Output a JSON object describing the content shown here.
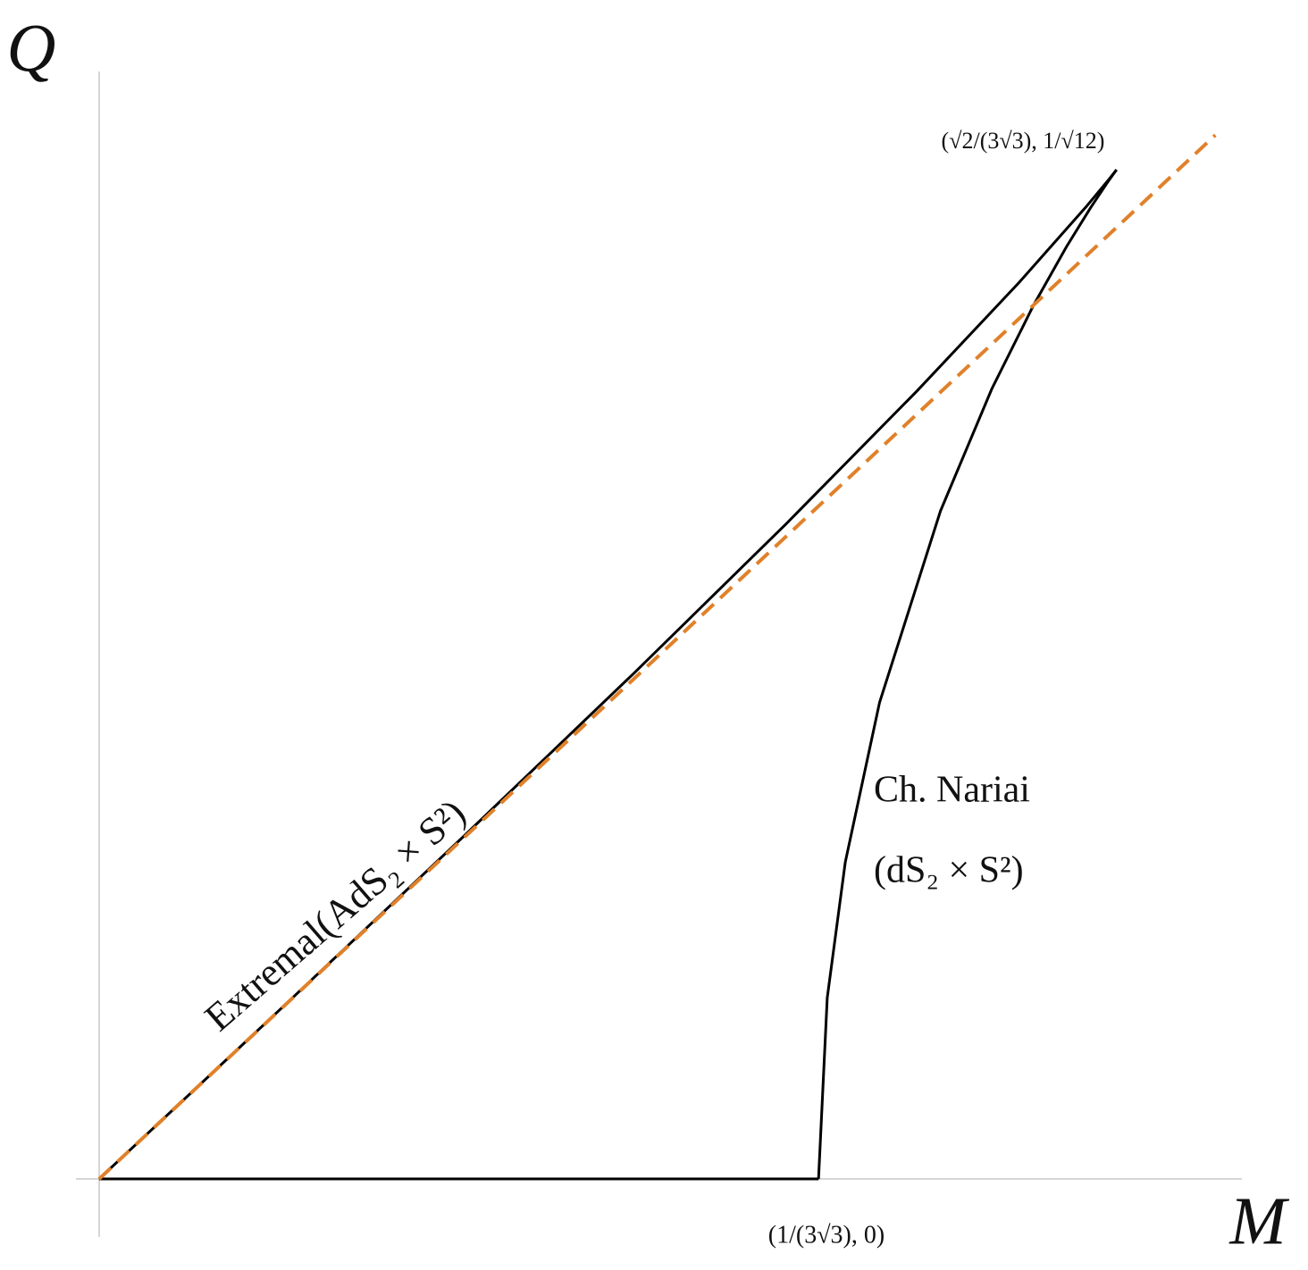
{
  "chart_data": {
    "type": "line",
    "x_label": "M",
    "y_label": "Q",
    "xlim": [
      -0.0062,
      0.3057
    ],
    "ylim": [
      -0.0166,
      0.3168
    ],
    "grid": false,
    "series": [
      {
        "name": "Extremal(AdS₂ × S²)",
        "color": "#000000",
        "dashed": false,
        "x": [
          0,
          0.04975,
          0.098,
          0.14325,
          0.184,
          0.21875,
          0.246,
          0.26425,
          0.270256,
          0.27217
        ],
        "values": [
          0,
          0.04981,
          0.098489,
          0.14485,
          0.18762,
          0.22535,
          0.25632,
          0.27836,
          0.28609,
          0.28868
        ]
      },
      {
        "name": "Ch. Nariai",
        "color": "#000000",
        "dashed": false,
        "x": [
          0.27217,
          0.271824,
          0.269632,
          0.265328,
          0.258816,
          0.25,
          0.238784,
          0.225072,
          0.208768,
          0.199614,
          0.194781,
          0.19245
        ],
        "values": [
          0.28868,
          0.28818,
          0.28488,
          0.27799,
          0.26673,
          0.25,
          0.22595,
          0.19107,
          0.13625,
          0.09066,
          0.05183,
          0
        ]
      },
      {
        "name": "Q = 0",
        "color": "#000000",
        "dashed": false,
        "x": [
          0,
          0.19245
        ],
        "values": [
          0,
          0
        ]
      },
      {
        "name": "Q = M",
        "color": "#e0812a",
        "dashed": true,
        "x": [
          0,
          0.2986
        ],
        "values": [
          0,
          0.2986
        ]
      }
    ],
    "annotations": [
      {
        "text": "(√2/(3√3), 1/√12)",
        "x": 0.27217,
        "y": 0.28868
      },
      {
        "text": "(1/(3√3), 0)",
        "x": 0.19245,
        "y": 0
      },
      {
        "text": "Extremal(AdS₂ × S²)"
      },
      {
        "text": "Ch. Nariai"
      },
      {
        "text": "(dS₂ × S²)"
      }
    ]
  }
}
